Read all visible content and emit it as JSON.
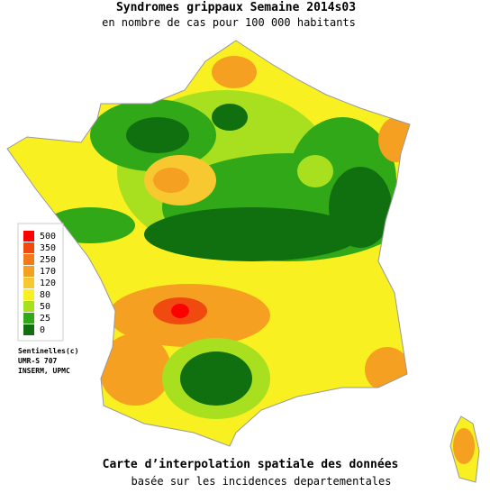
{
  "header": {
    "title": "Syndromes grippaux Semaine 2014s03",
    "subtitle": "en nombre de cas pour 100 000 habitants"
  },
  "legend": {
    "levels": [
      {
        "value": 500,
        "color": "#ff0000"
      },
      {
        "value": 350,
        "color": "#f04a10"
      },
      {
        "value": 250,
        "color": "#f27a1a"
      },
      {
        "value": 170,
        "color": "#f5a020"
      },
      {
        "value": 120,
        "color": "#f8c830"
      },
      {
        "value": 80,
        "color": "#f8f020"
      },
      {
        "value": 50,
        "color": "#a8e020"
      },
      {
        "value": 25,
        "color": "#30a818"
      },
      {
        "value": 0,
        "color": "#107010"
      }
    ]
  },
  "credits": [
    "Sentinelles(c)",
    "UMR-S 707",
    "INSERM, UPMC"
  ],
  "footer": {
    "title": "Carte d’interpolation spatiale des données",
    "subtitle": "basée sur les incidences departementales"
  }
}
